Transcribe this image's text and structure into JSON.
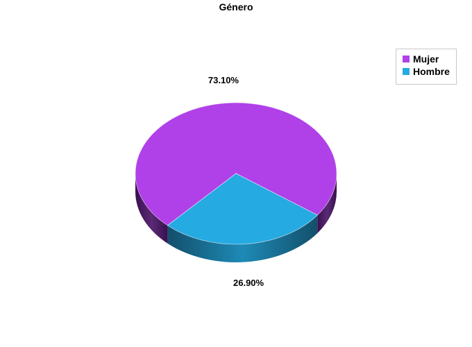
{
  "chart_data": {
    "type": "pie",
    "title": "Género",
    "slices": [
      {
        "label": "Mujer",
        "value": 73.1,
        "value_label": "73.10%",
        "color": "#b040e8",
        "side_color": "#4a1a60"
      },
      {
        "label": "Hombre",
        "value": 26.9,
        "value_label": "26.90%",
        "color": "#25aae1",
        "side_color": "#1a6f92"
      }
    ],
    "legend_position": "top-right",
    "style": "3d"
  }
}
